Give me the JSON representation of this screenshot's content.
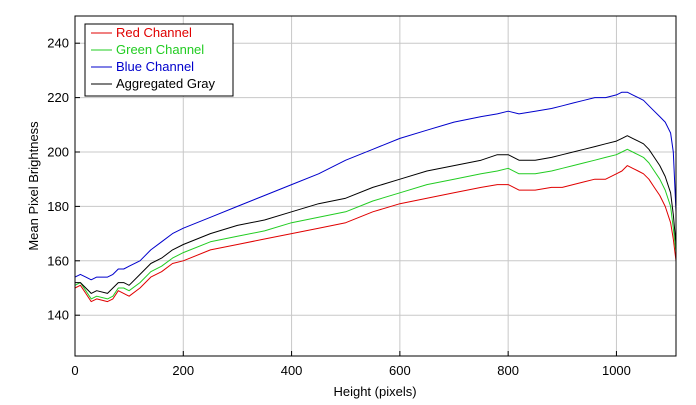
{
  "chart_data": {
    "type": "line",
    "title": "",
    "xlabel": "Height (pixels)",
    "ylabel": "Mean Pixel Brightness",
    "xlim": [
      0,
      1110
    ],
    "ylim": [
      125,
      250
    ],
    "xticks": [
      0,
      200,
      400,
      600,
      800,
      1000
    ],
    "yticks": [
      140,
      160,
      180,
      200,
      220,
      240
    ],
    "grid": true,
    "legend_position": "top-left",
    "series": [
      {
        "name": "Red Channel",
        "color": "#e00000",
        "x": [
          0,
          10,
          20,
          30,
          40,
          60,
          70,
          80,
          90,
          100,
          120,
          140,
          160,
          180,
          200,
          250,
          300,
          350,
          400,
          450,
          500,
          550,
          600,
          650,
          700,
          750,
          780,
          800,
          820,
          850,
          880,
          900,
          920,
          940,
          960,
          980,
          1000,
          1010,
          1020,
          1030,
          1040,
          1050,
          1060,
          1070,
          1080,
          1090,
          1100,
          1105,
          1110
        ],
        "values": [
          150,
          151,
          148,
          145,
          146,
          145,
          146,
          149,
          148,
          147,
          150,
          154,
          156,
          159,
          160,
          164,
          166,
          168,
          170,
          172,
          174,
          178,
          181,
          183,
          185,
          187,
          188,
          188,
          186,
          186,
          187,
          187,
          188,
          189,
          190,
          190,
          192,
          193,
          195,
          194,
          193,
          192,
          190,
          187,
          184,
          180,
          174,
          168,
          160
        ]
      },
      {
        "name": "Green Channel",
        "color": "#22cc22",
        "x": [
          0,
          10,
          20,
          30,
          40,
          60,
          70,
          80,
          90,
          100,
          120,
          140,
          160,
          180,
          200,
          250,
          300,
          350,
          400,
          450,
          500,
          550,
          600,
          650,
          700,
          750,
          780,
          800,
          820,
          850,
          880,
          900,
          920,
          940,
          960,
          980,
          1000,
          1010,
          1020,
          1030,
          1040,
          1050,
          1060,
          1070,
          1080,
          1090,
          1100,
          1105,
          1110
        ],
        "values": [
          151,
          152,
          149,
          146,
          147,
          146,
          147,
          150,
          150,
          149,
          152,
          156,
          158,
          161,
          163,
          167,
          169,
          171,
          174,
          176,
          178,
          182,
          185,
          188,
          190,
          192,
          193,
          194,
          192,
          192,
          193,
          194,
          195,
          196,
          197,
          198,
          199,
          200,
          201,
          200,
          199,
          198,
          196,
          193,
          190,
          186,
          180,
          172,
          163
        ]
      },
      {
        "name": "Blue Channel",
        "color": "#0000cc",
        "x": [
          0,
          10,
          20,
          30,
          40,
          60,
          70,
          80,
          90,
          100,
          120,
          140,
          160,
          180,
          200,
          250,
          300,
          350,
          400,
          450,
          500,
          550,
          600,
          650,
          700,
          750,
          780,
          800,
          820,
          850,
          880,
          900,
          920,
          940,
          960,
          980,
          1000,
          1010,
          1020,
          1030,
          1040,
          1050,
          1060,
          1070,
          1080,
          1090,
          1100,
          1105,
          1110
        ],
        "values": [
          154,
          155,
          154,
          153,
          154,
          154,
          155,
          157,
          157,
          158,
          160,
          164,
          167,
          170,
          172,
          176,
          180,
          184,
          188,
          192,
          197,
          201,
          205,
          208,
          211,
          213,
          214,
          215,
          214,
          215,
          216,
          217,
          218,
          219,
          220,
          220,
          221,
          222,
          222,
          221,
          220,
          219,
          217,
          215,
          213,
          211,
          207,
          200,
          178
        ]
      },
      {
        "name": "Aggregated Gray",
        "color": "#000000",
        "x": [
          0,
          10,
          20,
          30,
          40,
          60,
          70,
          80,
          90,
          100,
          120,
          140,
          160,
          180,
          200,
          250,
          300,
          350,
          400,
          450,
          500,
          550,
          600,
          650,
          700,
          750,
          780,
          800,
          820,
          850,
          880,
          900,
          920,
          940,
          960,
          980,
          1000,
          1010,
          1020,
          1030,
          1040,
          1050,
          1060,
          1070,
          1080,
          1090,
          1100,
          1105,
          1110
        ],
        "values": [
          152,
          152,
          150,
          148,
          149,
          148,
          150,
          152,
          152,
          151,
          155,
          159,
          161,
          164,
          166,
          170,
          173,
          175,
          178,
          181,
          183,
          187,
          190,
          193,
          195,
          197,
          199,
          199,
          197,
          197,
          198,
          199,
          200,
          201,
          202,
          203,
          204,
          205,
          206,
          205,
          204,
          203,
          201,
          198,
          195,
          191,
          185,
          177,
          166
        ]
      }
    ]
  }
}
